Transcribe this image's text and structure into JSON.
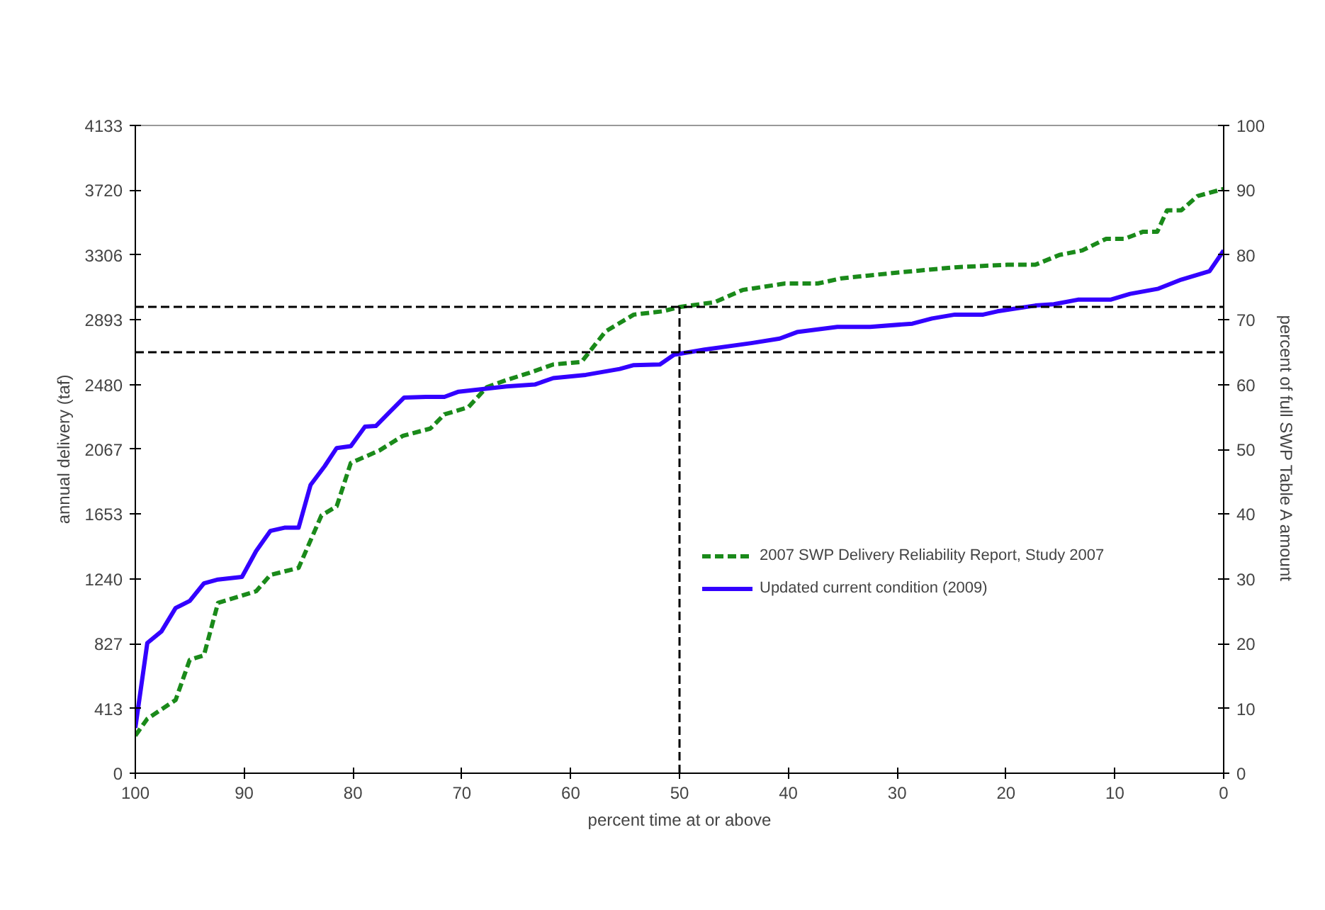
{
  "chart_data": {
    "type": "line",
    "xlabel": "percent time at or above",
    "ylabel": "annual delivery (taf)",
    "y2label": "percent of full SWP Table A amount",
    "xlim": [
      100,
      0
    ],
    "xticks": [
      100,
      90,
      80,
      70,
      60,
      50,
      40,
      30,
      20,
      10,
      0
    ],
    "ylim": [
      0,
      4133
    ],
    "yticks": [
      0,
      413,
      827,
      1240,
      1653,
      2067,
      2480,
      2893,
      3306,
      3720,
      4133
    ],
    "y2lim": [
      0,
      100
    ],
    "y2ticks": [
      0,
      10,
      20,
      30,
      40,
      50,
      60,
      70,
      80,
      90,
      100
    ],
    "grid": false,
    "legend": "right",
    "marker": "none",
    "ref_lines": [
      {
        "axis": "y2",
        "value": 72,
        "color": "#000000",
        "line_style": "dashed"
      },
      {
        "axis": "y2",
        "value": 65,
        "color": "#000000",
        "line_style": "dashed"
      },
      {
        "axis": "x",
        "value": 50,
        "color": "#000000",
        "line_style": "dashed"
      }
    ],
    "series": [
      {
        "name": "2007 SWP Delivery Reliability Report, Study 2007",
        "color": "#1a8a1a",
        "line_style": "dashed",
        "axis": "y2",
        "x": [
          100,
          98.9,
          96.3,
          95.0,
          93.7,
          92.4,
          88.9,
          87.6,
          85.0,
          82.9,
          81.5,
          80.2,
          77.6,
          75.4,
          72.9,
          71.6,
          69.4,
          67.7,
          65.9,
          63.8,
          61.6,
          59.0,
          56.8,
          54.2,
          51.6,
          49.9,
          46.8,
          44.2,
          40.3,
          37.3,
          35.1,
          29.9,
          24.7,
          19.9,
          17.3,
          15.1,
          13.0,
          10.8,
          9.1,
          7.4,
          6.1,
          5.2,
          3.9,
          2.4,
          0
        ],
        "values": [
          5.8,
          8.4,
          11.3,
          17.5,
          18.2,
          26.3,
          28.1,
          30.6,
          31.7,
          39.8,
          41.2,
          47.9,
          49.8,
          52.1,
          53.2,
          55.4,
          56.5,
          59.6,
          60.7,
          61.8,
          63.1,
          63.5,
          68.2,
          70.8,
          71.3,
          72.0,
          72.7,
          74.6,
          75.6,
          75.6,
          76.4,
          77.3,
          78.1,
          78.5,
          78.5,
          80.0,
          80.7,
          82.5,
          82.5,
          83.6,
          83.6,
          86.9,
          86.9,
          89.1,
          90.2
        ]
      },
      {
        "name": "Updated current condition (2009)",
        "color": "#3300ff",
        "line_style": "solid",
        "axis": "y2",
        "x": [
          100,
          98.9,
          97.6,
          96.3,
          95.0,
          93.7,
          92.4,
          90.2,
          88.9,
          87.6,
          86.3,
          85.0,
          83.9,
          82.6,
          81.5,
          80.2,
          78.9,
          77.9,
          76.6,
          75.3,
          73.3,
          71.6,
          70.3,
          68.1,
          65.9,
          63.3,
          61.6,
          58.6,
          55.5,
          54.2,
          51.8,
          50.5,
          47.7,
          43.4,
          40.8,
          39.2,
          35.5,
          32.5,
          28.6,
          26.8,
          24.7,
          22.1,
          20.8,
          17.3,
          15.6,
          13.4,
          10.4,
          8.6,
          6.0,
          3.9,
          1.3,
          0
        ],
        "values": [
          7.0,
          20.1,
          21.9,
          25.5,
          26.6,
          29.3,
          29.9,
          30.3,
          34.3,
          37.4,
          37.9,
          37.9,
          44.5,
          47.4,
          50.2,
          50.5,
          53.5,
          53.6,
          55.8,
          58.0,
          58.1,
          58.1,
          58.9,
          59.3,
          59.7,
          60.0,
          61.0,
          61.5,
          62.4,
          63.0,
          63.1,
          64.6,
          65.4,
          66.4,
          67.1,
          68.1,
          68.9,
          68.9,
          69.4,
          70.2,
          70.8,
          70.8,
          71.3,
          72.2,
          72.4,
          73.1,
          73.1,
          74.0,
          74.8,
          76.2,
          77.5,
          80.7
        ]
      }
    ]
  }
}
